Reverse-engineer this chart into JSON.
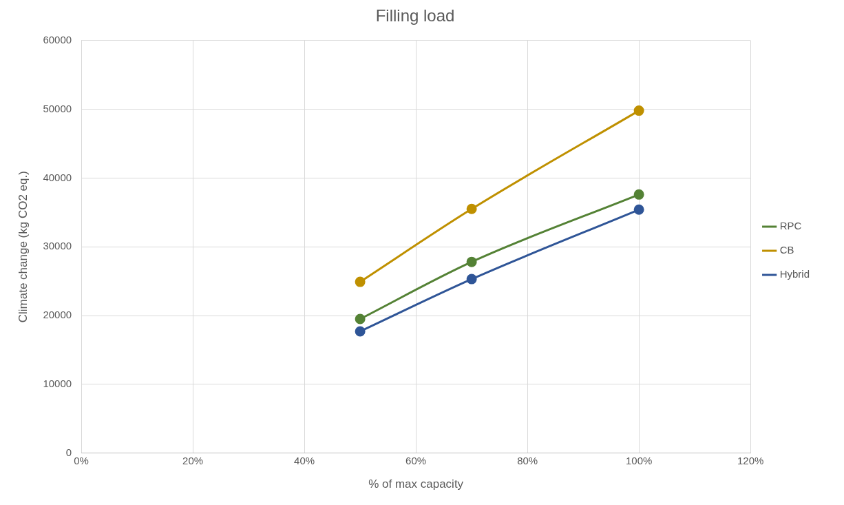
{
  "chart_data": {
    "type": "line",
    "title": "Filling load",
    "xlabel": "% of max capacity",
    "ylabel": "Climate change (kg CO2 eq.)",
    "x": [
      50,
      70,
      100
    ],
    "series": [
      {
        "name": "RPC",
        "color": "#548235",
        "values": [
          19500,
          27800,
          37600
        ]
      },
      {
        "name": "CB",
        "color": "#bf9000",
        "values": [
          24900,
          35500,
          49800
        ]
      },
      {
        "name": "Hybrid",
        "color": "#2f5597",
        "values": [
          17700,
          25300,
          35400
        ]
      }
    ],
    "xlim": [
      0,
      120
    ],
    "xticks": [
      {
        "value": 0,
        "label": "0%"
      },
      {
        "value": 20,
        "label": "20%"
      },
      {
        "value": 40,
        "label": "40%"
      },
      {
        "value": 60,
        "label": "60%"
      },
      {
        "value": 80,
        "label": "80%"
      },
      {
        "value": 100,
        "label": "100%"
      },
      {
        "value": 120,
        "label": "120%"
      }
    ],
    "ylim": [
      0,
      60000
    ],
    "yticks": [
      0,
      10000,
      20000,
      30000,
      40000,
      50000,
      60000
    ],
    "grid": true,
    "legend": "right",
    "marker": "circle",
    "line_style": "solid"
  }
}
